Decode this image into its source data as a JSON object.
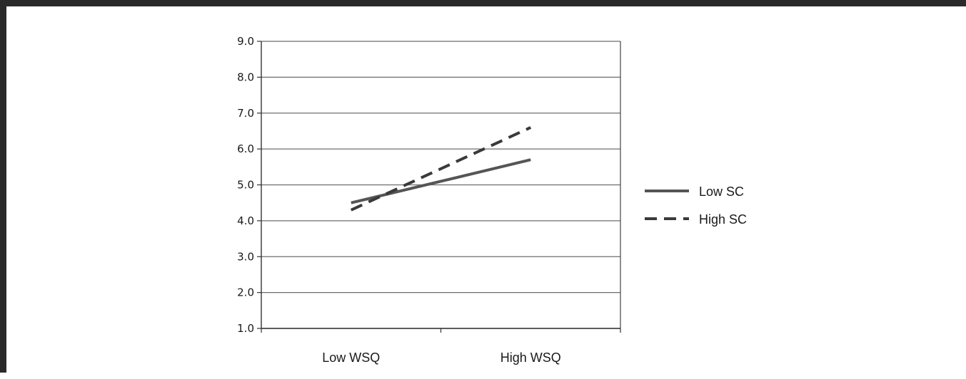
{
  "chart_data": {
    "type": "line",
    "title": "",
    "xlabel": "",
    "ylabel": "",
    "categories": [
      "Low WSQ",
      "High WSQ"
    ],
    "ylim": [
      1.0,
      9.0
    ],
    "yticks": [
      "1.0",
      "2.0",
      "3.0",
      "4.0",
      "5.0",
      "6.0",
      "7.0",
      "8.0",
      "9.0"
    ],
    "grid": true,
    "legend_position": "right",
    "series": [
      {
        "name": "Low SC",
        "values": [
          4.5,
          5.7
        ],
        "style": "solid",
        "color": "#555555"
      },
      {
        "name": "High SC",
        "values": [
          4.3,
          6.6
        ],
        "style": "dashed",
        "color": "#3a3a3a"
      }
    ]
  }
}
